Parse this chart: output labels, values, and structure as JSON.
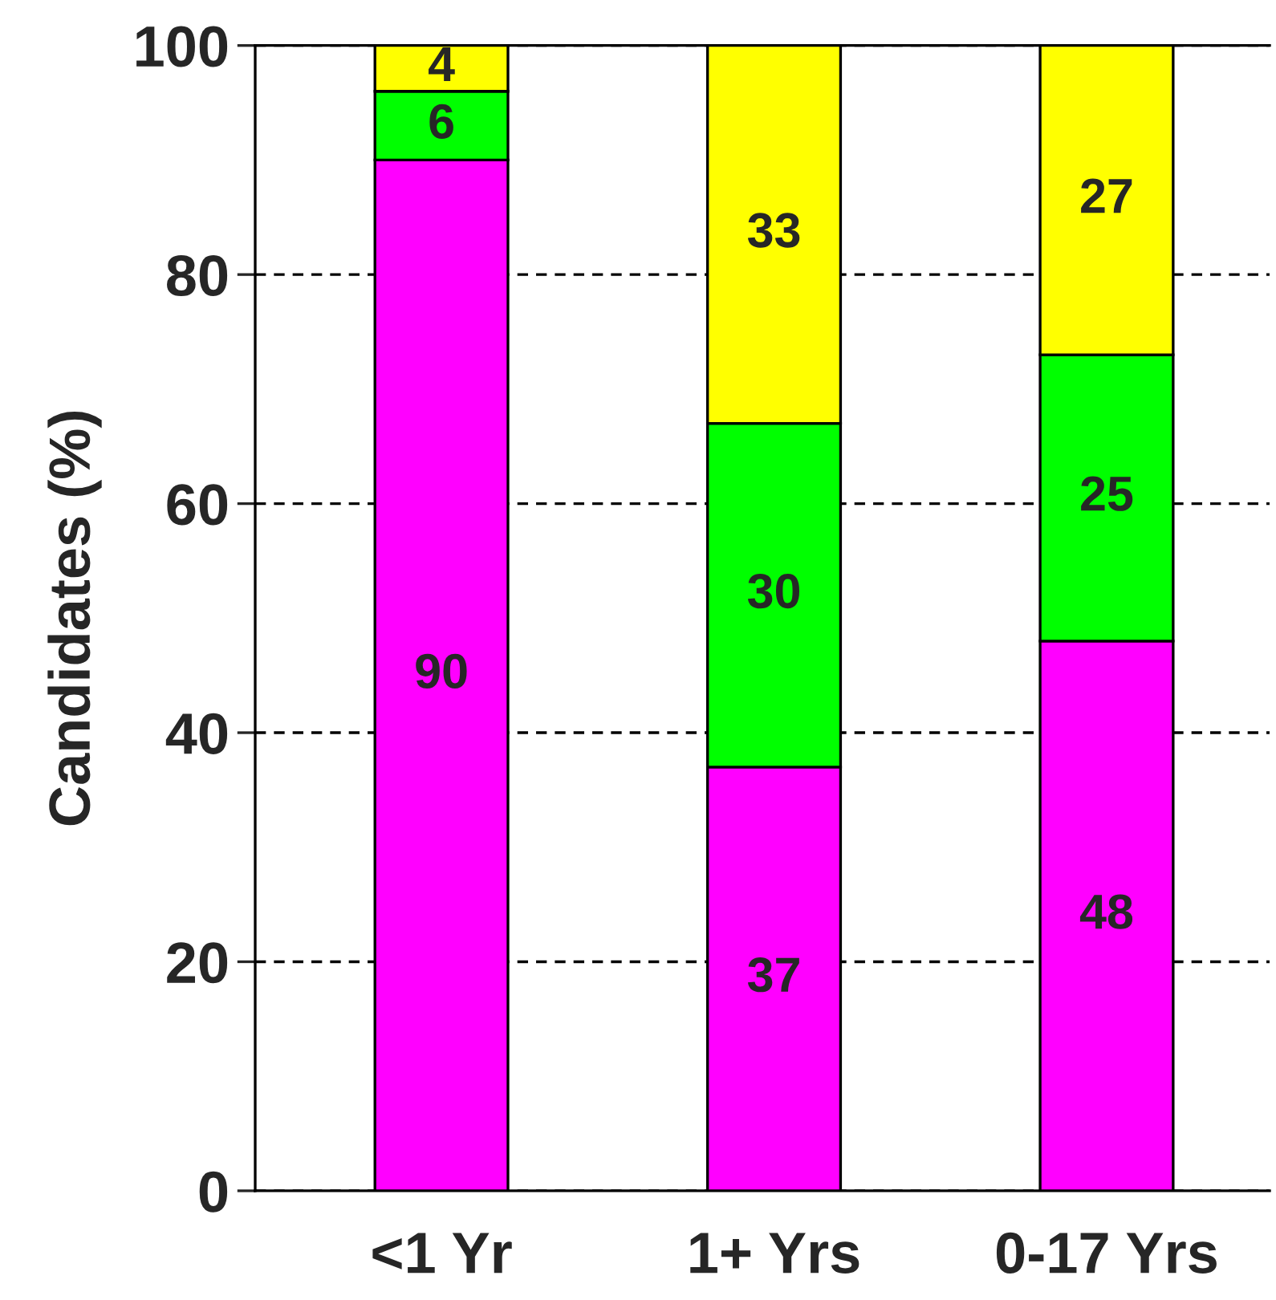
{
  "chart_data": {
    "type": "bar",
    "stacked": true,
    "ylabel": "Candidates (%)",
    "categories": [
      "<1 Yr",
      "1+ Yrs",
      "0-17 Yrs"
    ],
    "series": [
      {
        "color": "#ff00ff",
        "values": [
          90,
          37,
          48
        ]
      },
      {
        "color": "#00ff00",
        "values": [
          6,
          30,
          25
        ]
      },
      {
        "color": "#ffff00",
        "values": [
          4,
          33,
          27
        ]
      }
    ],
    "ylim": [
      0,
      100
    ],
    "yticks": [
      0,
      20,
      40,
      60,
      80,
      100
    ],
    "grid": "y",
    "data_labels": true,
    "legend": false
  }
}
